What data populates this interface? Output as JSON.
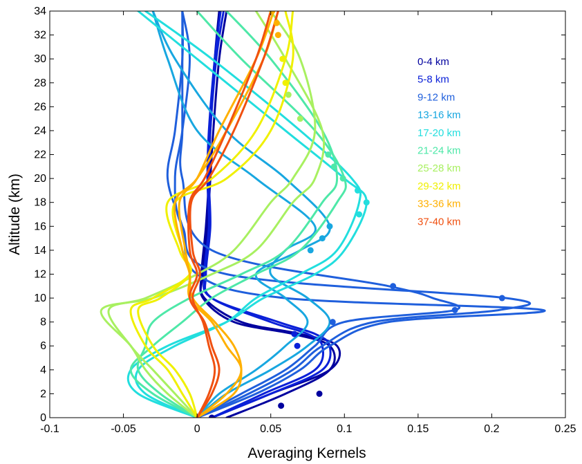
{
  "chart_data": {
    "type": "line",
    "title": "",
    "xlabel": "Averaging Kernels",
    "ylabel": "Altitude (km)",
    "xlim": [
      -0.1,
      0.25
    ],
    "ylim": [
      0,
      34
    ],
    "xticks": [
      "-0.1",
      "-0.05",
      "0",
      "0.05",
      "0.1",
      "0.15",
      "0.2",
      "0.25"
    ],
    "yticks": [
      "0",
      "2",
      "4",
      "6",
      "8",
      "10",
      "12",
      "14",
      "16",
      "18",
      "20",
      "22",
      "24",
      "26",
      "28",
      "30",
      "32",
      "34"
    ],
    "grid": false,
    "legend_position": "top-right",
    "legend": [
      {
        "name": "0-4 km",
        "color": "#00009e"
      },
      {
        "name": "5-8 km",
        "color": "#0a20d8"
      },
      {
        "name": "9-12 km",
        "color": "#1f5fdc"
      },
      {
        "name": "13-16 km",
        "color": "#18a7e0"
      },
      {
        "name": "17-20 km",
        "color": "#22dede"
      },
      {
        "name": "21-24 km",
        "color": "#4ee8a8"
      },
      {
        "name": "25-28 km",
        "color": "#a8f060"
      },
      {
        "name": "29-32 km",
        "color": "#f0f000"
      },
      {
        "name": "33-36 km",
        "color": "#ffb000"
      },
      {
        "name": "37-40 km",
        "color": "#f05010"
      }
    ],
    "series": [
      {
        "group": "0-4 km",
        "color": "#00009e",
        "x": [
          0.01,
          0.05,
          0.09,
          0.095,
          0.07,
          0.03,
          0.005,
          0.003,
          0.006,
          0.008,
          0.009,
          0.012,
          0.015
        ],
        "y": [
          0,
          2,
          4,
          6,
          7,
          8,
          10,
          12,
          16,
          20,
          24,
          30,
          34
        ]
      },
      {
        "group": "0-4 km",
        "color": "#00009e",
        "x": [
          0.02,
          0.06,
          0.09,
          0.09,
          0.065,
          0.025,
          0.004,
          0.004,
          0.007,
          0.009,
          0.011,
          0.015,
          0.02
        ],
        "y": [
          0,
          2,
          4,
          6,
          7,
          8,
          10,
          12,
          16,
          20,
          24,
          30,
          34
        ]
      },
      {
        "group": "5-8 km",
        "color": "#0a20d8",
        "x": [
          0.01,
          0.05,
          0.085,
          0.09,
          0.08,
          0.055,
          0.01,
          0.005,
          0.008,
          0.007,
          0.008,
          0.012,
          0.016
        ],
        "y": [
          0,
          2,
          4,
          6,
          7,
          8,
          10,
          12,
          16,
          20,
          24,
          30,
          34
        ]
      },
      {
        "group": "5-8 km",
        "color": "#0a20d8",
        "x": [
          0.01,
          0.045,
          0.08,
          0.085,
          0.075,
          0.05,
          0.01,
          0.006,
          0.009,
          0.008,
          0.009,
          0.013,
          0.018
        ],
        "y": [
          0,
          2,
          4,
          6,
          7,
          8,
          10,
          12,
          16,
          20,
          24,
          30,
          34
        ]
      },
      {
        "group": "9-12 km",
        "color": "#1f5fdc",
        "x": [
          0.0,
          0.04,
          0.07,
          0.09,
          0.13,
          0.235,
          0.06,
          0.0,
          -0.01,
          -0.02,
          -0.015,
          -0.01,
          -0.01
        ],
        "y": [
          0,
          2,
          4,
          6,
          8,
          9,
          10,
          12,
          16,
          20,
          24,
          30,
          34
        ]
      },
      {
        "group": "9-12 km",
        "color": "#1f5fdc",
        "x": [
          0.0,
          0.035,
          0.065,
          0.085,
          0.12,
          0.205,
          0.21,
          0.02,
          -0.01,
          -0.015,
          -0.01,
          -0.005,
          -0.01
        ],
        "y": [
          0,
          2,
          4,
          6,
          8,
          9,
          10,
          12,
          16,
          20,
          24,
          30,
          34
        ]
      },
      {
        "group": "9-12 km",
        "color": "#1f5fdc",
        "x": [
          0.0,
          0.03,
          0.06,
          0.08,
          0.1,
          0.175,
          0.16,
          0.13,
          0.01,
          -0.01,
          -0.01,
          -0.01,
          -0.01
        ],
        "y": [
          0,
          2,
          4,
          6,
          8,
          9,
          10,
          11,
          14,
          20,
          24,
          30,
          34
        ]
      },
      {
        "group": "13-16 km",
        "color": "#18a7e0",
        "x": [
          0.0,
          0.02,
          0.05,
          0.075,
          0.09,
          0.075,
          0.05,
          0.06,
          0.08,
          0.04,
          0.0,
          -0.02,
          -0.03
        ],
        "y": [
          0,
          2,
          4,
          6,
          8,
          10,
          12,
          14,
          16,
          20,
          24,
          30,
          34
        ]
      },
      {
        "group": "13-16 km",
        "color": "#18a7e0",
        "x": [
          0.0,
          0.015,
          0.04,
          0.06,
          0.075,
          0.06,
          0.04,
          0.07,
          0.09,
          0.06,
          0.02,
          -0.015,
          -0.03
        ],
        "y": [
          0,
          2,
          4,
          6,
          8,
          10,
          12,
          14,
          16,
          20,
          24,
          30,
          34
        ]
      },
      {
        "group": "17-20 km",
        "color": "#22dede",
        "x": [
          0.0,
          -0.04,
          -0.045,
          -0.02,
          0.02,
          0.045,
          0.08,
          0.1,
          0.115,
          0.1,
          0.06,
          0.0,
          -0.04
        ],
        "y": [
          0,
          2,
          4,
          6,
          8,
          10,
          12,
          14,
          18,
          20,
          24,
          30,
          34
        ]
      },
      {
        "group": "17-20 km",
        "color": "#22dede",
        "x": [
          0.0,
          -0.035,
          -0.04,
          -0.015,
          0.02,
          0.04,
          0.07,
          0.095,
          0.11,
          0.105,
          0.07,
          0.01,
          -0.035
        ],
        "y": [
          0,
          2,
          4,
          6,
          8,
          10,
          12,
          14,
          18,
          20,
          24,
          30,
          34
        ]
      },
      {
        "group": "21-24 km",
        "color": "#4ee8a8",
        "x": [
          0.0,
          -0.03,
          -0.045,
          -0.03,
          -0.01,
          0.01,
          0.04,
          0.07,
          0.095,
          0.1,
          0.08,
          0.03,
          0.0
        ],
        "y": [
          0,
          2,
          4,
          6,
          8,
          10,
          12,
          14,
          18,
          20,
          24,
          30,
          34
        ]
      },
      {
        "group": "21-24 km",
        "color": "#4ee8a8",
        "x": [
          0.0,
          -0.025,
          -0.04,
          -0.035,
          -0.03,
          -0.005,
          0.03,
          0.06,
          0.085,
          0.095,
          0.085,
          0.05,
          0.02
        ],
        "y": [
          0,
          2,
          4,
          6,
          8,
          10,
          12,
          14,
          18,
          20,
          24,
          30,
          34
        ]
      },
      {
        "group": "25-28 km",
        "color": "#a8f060",
        "x": [
          0.0,
          -0.02,
          -0.035,
          -0.045,
          -0.065,
          -0.03,
          0.01,
          0.04,
          0.065,
          0.08,
          0.085,
          0.06,
          0.04
        ],
        "y": [
          0,
          2,
          4,
          6,
          9,
          10,
          12,
          14,
          18,
          20,
          24,
          30,
          34
        ]
      },
      {
        "group": "25-28 km",
        "color": "#a8f060",
        "x": [
          0.0,
          -0.015,
          -0.03,
          -0.045,
          -0.06,
          -0.035,
          0.0,
          0.025,
          0.05,
          0.065,
          0.08,
          0.07,
          0.05
        ],
        "y": [
          0,
          2,
          4,
          6,
          9,
          10,
          12,
          14,
          18,
          20,
          24,
          30,
          34
        ]
      },
      {
        "group": "29-32 km",
        "color": "#f0f000",
        "x": [
          0.0,
          -0.01,
          -0.02,
          -0.035,
          -0.045,
          -0.03,
          -0.005,
          -0.01,
          -0.015,
          0.02,
          0.05,
          0.065,
          0.06
        ],
        "y": [
          0,
          2,
          4,
          6,
          9,
          10,
          12,
          14,
          18,
          20,
          24,
          30,
          34
        ]
      },
      {
        "group": "29-32 km",
        "color": "#f0f000",
        "x": [
          0.0,
          -0.005,
          -0.015,
          -0.03,
          -0.04,
          -0.025,
          -0.005,
          -0.012,
          -0.02,
          0.01,
          0.04,
          0.06,
          0.065
        ],
        "y": [
          0,
          2,
          4,
          6,
          9,
          10,
          12,
          14,
          18,
          20,
          24,
          30,
          34
        ]
      },
      {
        "group": "33-36 km",
        "color": "#ffb000",
        "x": [
          0.0,
          0.02,
          0.03,
          0.02,
          0.01,
          -0.005,
          -0.005,
          -0.01,
          -0.015,
          0.0,
          0.02,
          0.045,
          0.055
        ],
        "y": [
          0,
          2,
          4,
          6,
          8,
          10,
          12,
          14,
          18,
          20,
          24,
          30,
          34
        ]
      },
      {
        "group": "33-36 km",
        "color": "#ffb000",
        "x": [
          0.0,
          0.025,
          0.03,
          0.025,
          0.012,
          -0.003,
          -0.005,
          -0.008,
          -0.012,
          0.0,
          0.015,
          0.04,
          0.052
        ],
        "y": [
          0,
          2,
          4,
          6,
          8,
          10,
          12,
          14,
          18,
          20,
          24,
          30,
          34
        ]
      },
      {
        "group": "37-40 km",
        "color": "#f05010",
        "x": [
          0.0,
          0.01,
          0.015,
          0.01,
          0.005,
          -0.005,
          0.0,
          -0.005,
          -0.005,
          0.005,
          0.02,
          0.04,
          0.05
        ],
        "y": [
          0,
          2,
          4,
          6,
          8,
          10,
          12,
          14,
          18,
          20,
          24,
          30,
          34
        ]
      },
      {
        "group": "37-40 km",
        "color": "#f05010",
        "x": [
          0.0,
          0.008,
          0.012,
          0.008,
          0.004,
          -0.003,
          0.002,
          -0.003,
          -0.004,
          0.008,
          0.025,
          0.045,
          0.055
        ],
        "y": [
          0,
          2,
          4,
          6,
          8,
          10,
          12,
          14,
          18,
          20,
          24,
          30,
          34
        ]
      }
    ],
    "markers": [
      {
        "x": 0.01,
        "y": 0,
        "color": "#00009e"
      },
      {
        "x": 0.057,
        "y": 1,
        "color": "#00009e"
      },
      {
        "x": 0.083,
        "y": 2,
        "color": "#00009e"
      },
      {
        "x": 0.066,
        "y": 7,
        "color": "#0a20d8"
      },
      {
        "x": 0.068,
        "y": 6,
        "color": "#0a20d8"
      },
      {
        "x": 0.092,
        "y": 8,
        "color": "#1f5fdc"
      },
      {
        "x": 0.175,
        "y": 9,
        "color": "#1f5fdc"
      },
      {
        "x": 0.207,
        "y": 10,
        "color": "#1f5fdc"
      },
      {
        "x": 0.133,
        "y": 11,
        "color": "#1f5fdc"
      },
      {
        "x": 0.077,
        "y": 14,
        "color": "#18a7e0"
      },
      {
        "x": 0.085,
        "y": 15,
        "color": "#18a7e0"
      },
      {
        "x": 0.09,
        "y": 16,
        "color": "#18a7e0"
      },
      {
        "x": 0.11,
        "y": 17,
        "color": "#22dede"
      },
      {
        "x": 0.115,
        "y": 18,
        "color": "#22dede"
      },
      {
        "x": 0.109,
        "y": 19,
        "color": "#22dede"
      },
      {
        "x": 0.099,
        "y": 20,
        "color": "#4ee8a8"
      },
      {
        "x": 0.093,
        "y": 21,
        "color": "#4ee8a8"
      },
      {
        "x": 0.089,
        "y": 22,
        "color": "#4ee8a8"
      },
      {
        "x": 0.07,
        "y": 25,
        "color": "#a8f060"
      },
      {
        "x": 0.062,
        "y": 27,
        "color": "#a8f060"
      },
      {
        "x": 0.06,
        "y": 28,
        "color": "#f0f000"
      },
      {
        "x": 0.058,
        "y": 30,
        "color": "#f0f000"
      },
      {
        "x": 0.055,
        "y": 32,
        "color": "#ffb000"
      },
      {
        "x": 0.054,
        "y": 33,
        "color": "#ffb000"
      },
      {
        "x": 0.051,
        "y": 34,
        "color": "#ffb000"
      }
    ]
  }
}
